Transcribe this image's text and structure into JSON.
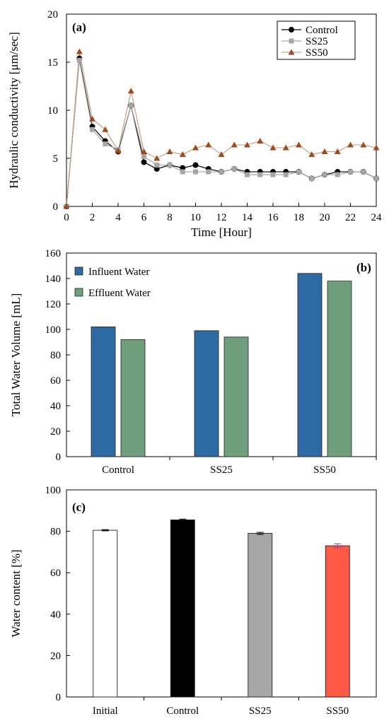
{
  "chart_data": [
    {
      "type": "line",
      "panel": "(a)",
      "xlabel": "Time  [Hour]",
      "ylabel": "Hydraulic  conductivity  [μm/sec]",
      "xlim": [
        0,
        24
      ],
      "ylim": [
        0,
        20
      ],
      "xticks": [
        "0",
        "2",
        "4",
        "6",
        "8",
        "10",
        "12",
        "14",
        "16",
        "18",
        "20",
        "22",
        "24"
      ],
      "yticks": [
        "0",
        "5",
        "10",
        "15",
        "20"
      ],
      "grid": false,
      "legend": "top-right",
      "series": [
        {
          "name": "Control",
          "marker": "circle",
          "color": "#000000",
          "line_color": "#000000",
          "x": [
            0,
            1,
            2,
            3,
            4,
            5,
            6,
            7,
            8,
            9,
            10,
            11,
            12,
            13,
            14,
            15,
            16,
            17,
            18,
            19,
            20,
            21,
            22,
            23,
            24
          ],
          "y": [
            0,
            15.4,
            8.3,
            6.8,
            5.7,
            10.5,
            4.6,
            3.9,
            4.3,
            4.0,
            4.3,
            3.9,
            3.6,
            3.9,
            3.6,
            3.6,
            3.6,
            3.6,
            3.6,
            2.9,
            3.3,
            3.6,
            3.6,
            3.6,
            2.9
          ]
        },
        {
          "name": "SS25",
          "marker": "square",
          "color": "#a6a6a6",
          "line_color": "#a6a6a6",
          "x": [
            0,
            1,
            2,
            3,
            4,
            5,
            6,
            7,
            8,
            9,
            10,
            11,
            12,
            13,
            14,
            15,
            16,
            17,
            18,
            19,
            20,
            21,
            22,
            23,
            24
          ],
          "y": [
            0,
            15.2,
            8.0,
            6.5,
            5.9,
            10.5,
            5.2,
            4.3,
            4.3,
            3.6,
            3.6,
            3.6,
            3.6,
            3.9,
            3.3,
            3.3,
            3.3,
            3.3,
            3.6,
            2.9,
            3.3,
            3.3,
            3.6,
            3.6,
            2.9
          ]
        },
        {
          "name": "SS50",
          "marker": "triangle",
          "color": "#9e4a1c",
          "line_color": "#c8a08a",
          "x": [
            0,
            1,
            2,
            3,
            4,
            5,
            6,
            7,
            8,
            9,
            10,
            11,
            12,
            13,
            14,
            15,
            16,
            17,
            18,
            19,
            20,
            21,
            22,
            23,
            24
          ],
          "y": [
            0,
            16.1,
            9.1,
            8.0,
            5.8,
            12.0,
            5.7,
            5.0,
            5.7,
            5.4,
            6.1,
            6.4,
            5.4,
            6.4,
            6.4,
            6.8,
            6.1,
            6.1,
            6.4,
            5.4,
            5.7,
            5.7,
            6.4,
            6.4,
            6.1
          ]
        }
      ]
    },
    {
      "type": "bar",
      "panel": "(b)",
      "xlabel": "",
      "ylabel": "Total Water Volume [mL]",
      "ylim": [
        0,
        160
      ],
      "yticks": [
        "0",
        "20",
        "40",
        "60",
        "80",
        "100",
        "120",
        "140",
        "160"
      ],
      "categories": [
        "Control",
        "SS25",
        "SS50"
      ],
      "legend": "top-left",
      "series": [
        {
          "name": "Influent Water",
          "color": "#2e6aa3",
          "values": [
            102,
            99,
            144
          ]
        },
        {
          "name": "Effluent Water",
          "color": "#6f9f7c",
          "values": [
            92,
            94,
            138
          ]
        }
      ]
    },
    {
      "type": "bar",
      "panel": "(c)",
      "xlabel": "",
      "ylabel": "Water content [%]",
      "ylim": [
        0,
        100
      ],
      "yticks": [
        "0",
        "20",
        "40",
        "60",
        "80",
        "100"
      ],
      "categories": [
        "Initial",
        "Control",
        "SS25",
        "SS50"
      ],
      "values": [
        80.5,
        85.5,
        79,
        73
      ],
      "errors": [
        0.3,
        0.4,
        0.5,
        1.0
      ],
      "colors": [
        "#ffffff",
        "#000000",
        "#a6a6a6",
        "#ff5a45"
      ],
      "error_colors": [
        "#000000",
        "#000000",
        "#000000",
        "#a83a8a"
      ]
    }
  ]
}
